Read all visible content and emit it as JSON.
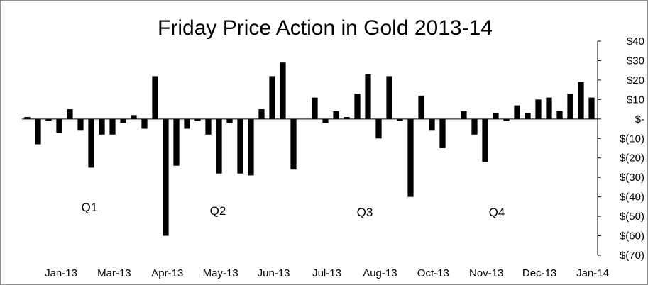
{
  "chart_data": {
    "type": "bar",
    "title": "Friday Price Action in Gold 2013-14",
    "xlabel": "",
    "ylabel": "",
    "ylim": [
      -70,
      40
    ],
    "y_ticks": [
      40,
      30,
      20,
      10,
      0,
      -10,
      -20,
      -30,
      -40,
      -50,
      -60,
      -70
    ],
    "y_tick_labels": [
      "$40",
      "$30",
      "$20",
      "$10",
      "$-",
      "$(10)",
      "$(20)",
      "$(30)",
      "$(40)",
      "$(50)",
      "$(60)",
      "$(70)"
    ],
    "x_tick_labels": [
      "Jan-13",
      "Mar-13",
      "Apr-13",
      "May-13",
      "Jun-13",
      "Jul-13",
      "Aug-13",
      "Oct-13",
      "Nov-13",
      "Dec-13",
      "Jan-14"
    ],
    "grid": false,
    "legend": "none",
    "bar_color": "#000000",
    "annotations": [
      "Q1",
      "Q2",
      "Q3",
      "Q4"
    ],
    "values": [
      1,
      -13,
      -1,
      -7,
      5,
      -6,
      -25,
      -8,
      -8,
      -2,
      2,
      -5,
      22,
      -60,
      -24,
      -5,
      -1,
      -8,
      -28,
      -2,
      -28,
      -29,
      5,
      22,
      29,
      -26,
      0,
      11,
      -2,
      4,
      1,
      13,
      23,
      -10,
      22,
      -1,
      -40,
      12,
      -6,
      -15,
      0,
      4,
      -8,
      -22,
      3,
      -1,
      7,
      3,
      10,
      11,
      4,
      13,
      19,
      11
    ]
  }
}
